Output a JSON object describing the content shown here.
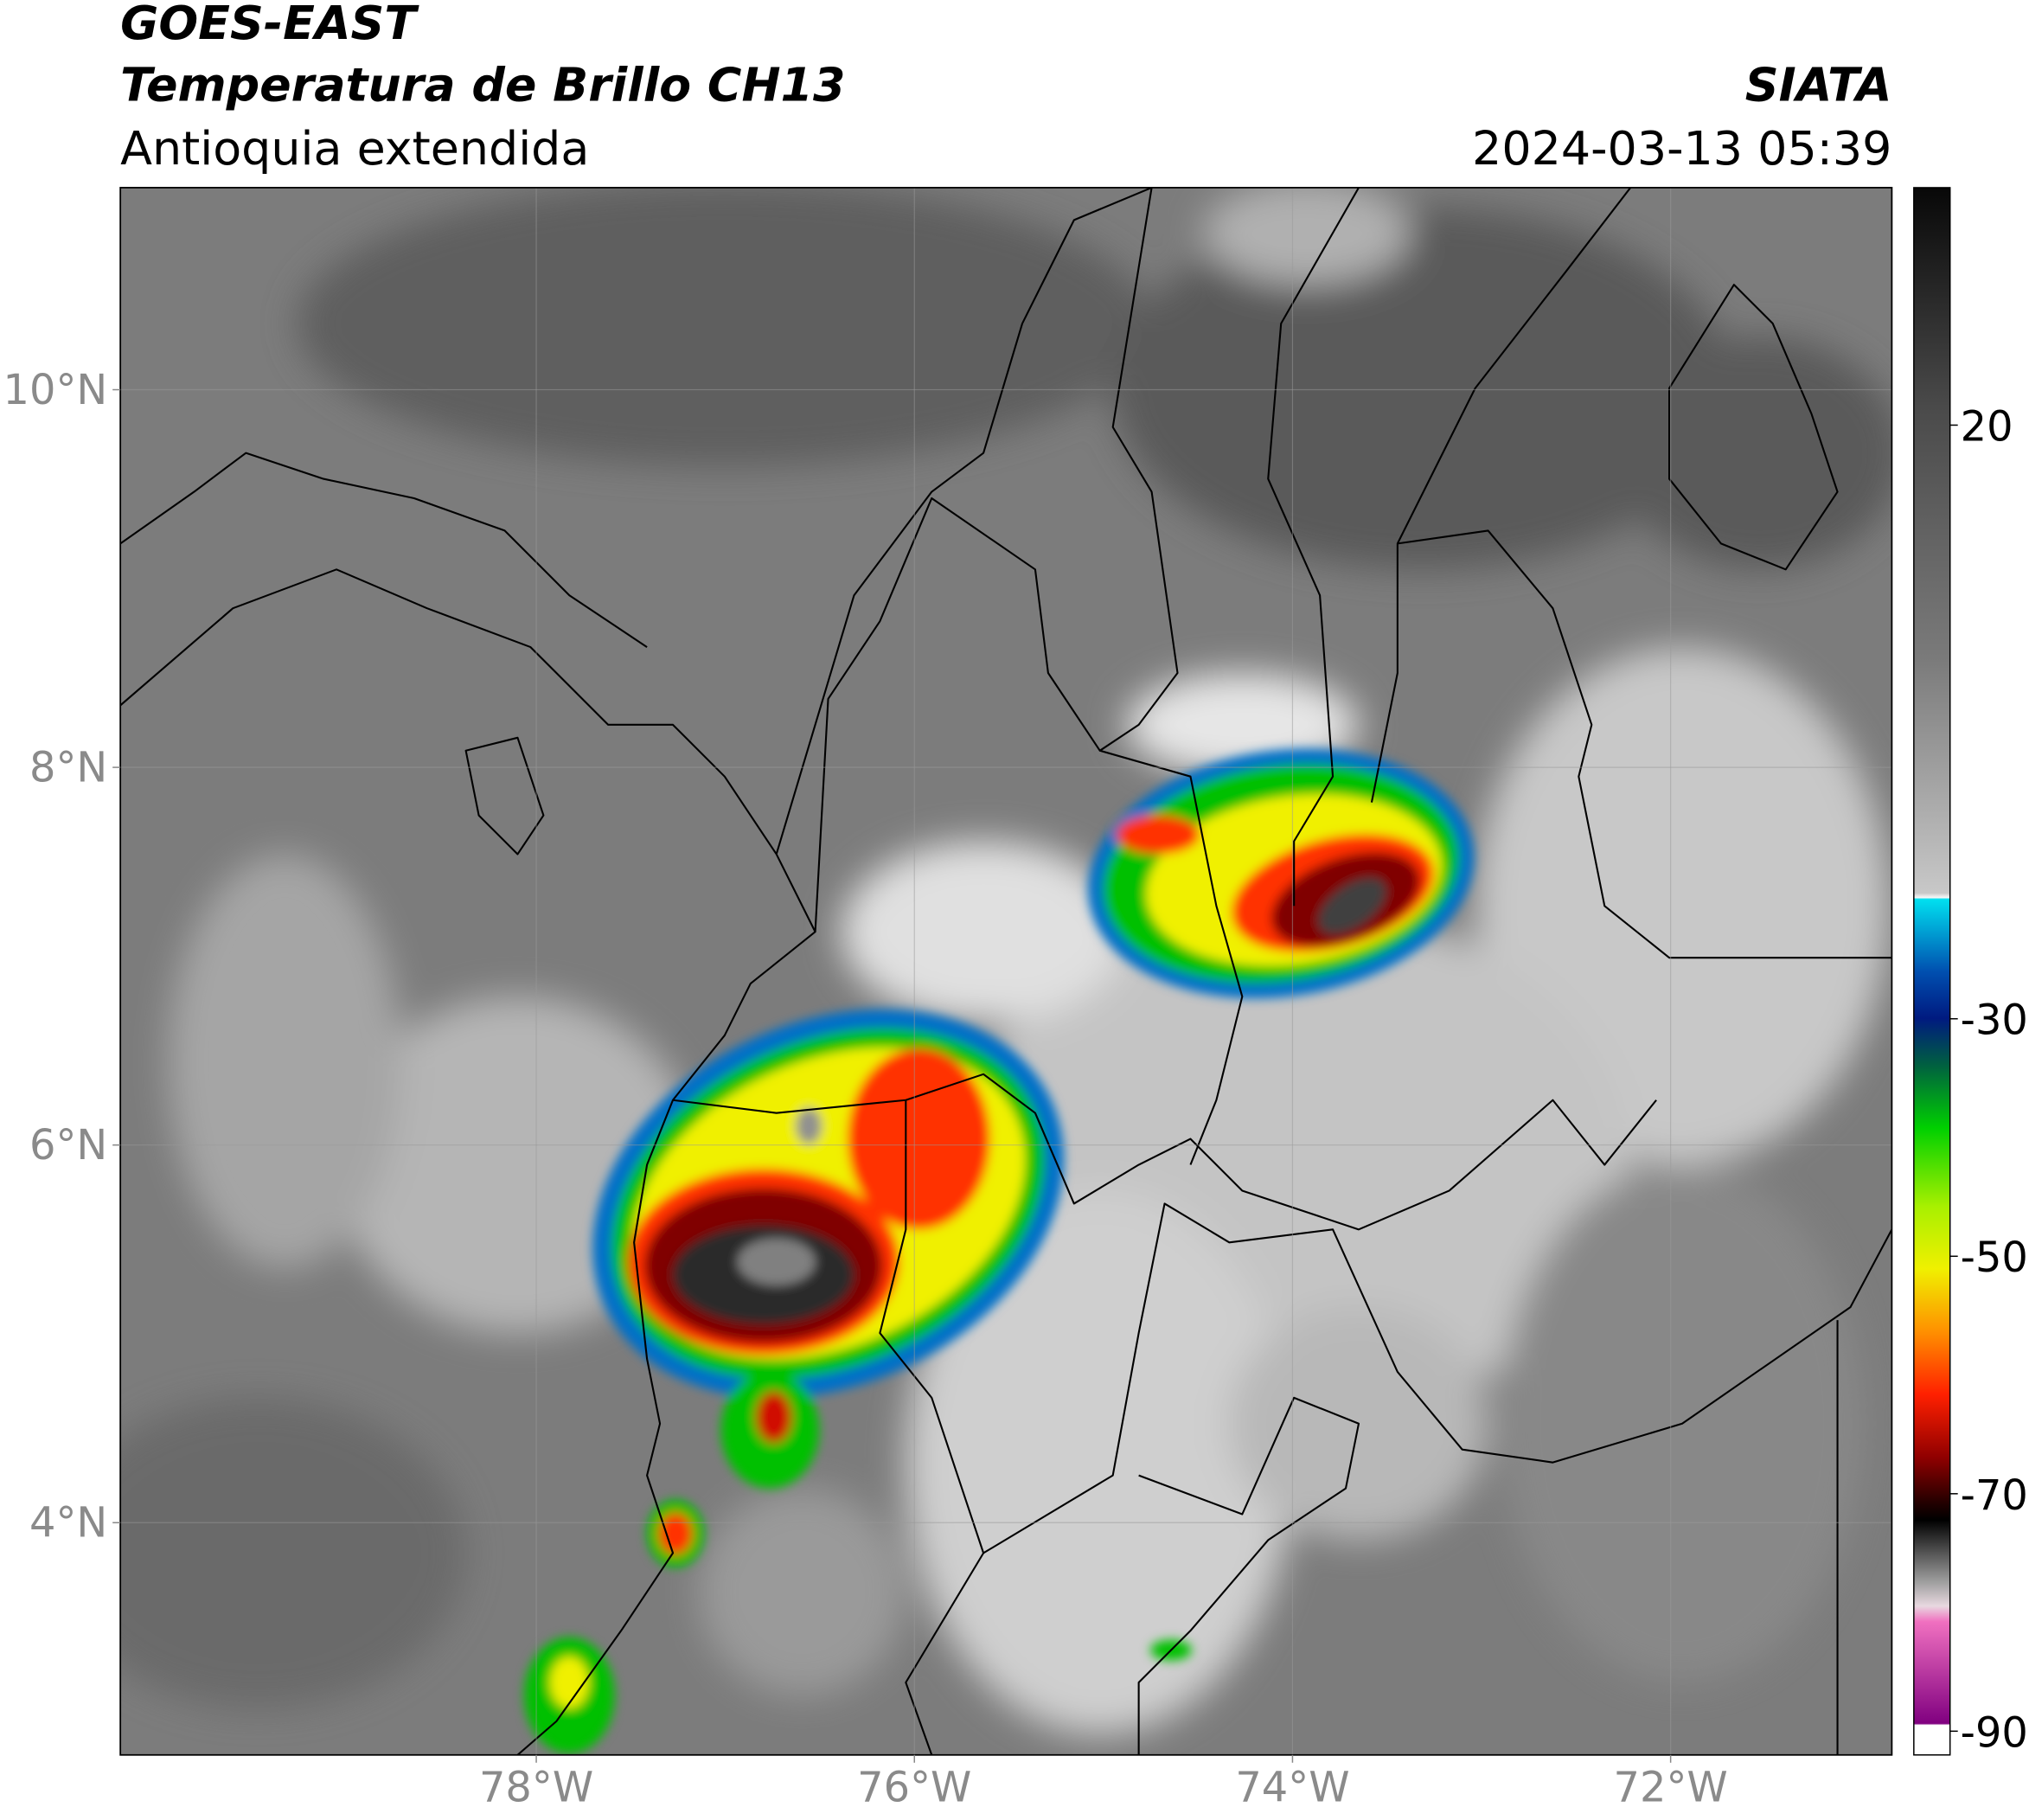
{
  "header": {
    "title": "GOES-EAST",
    "subtitle": "Temperatura de Brillo CH13",
    "region": "Antioquia extendida",
    "source": "SIATA",
    "datetime": "2024-03-13 05:39"
  },
  "map": {
    "xlim": [
      -80.2,
      -70.83
    ],
    "ylim": [
      2.77,
      11.07
    ],
    "xticks": [
      {
        "value": -78,
        "label": "78°W"
      },
      {
        "value": -76,
        "label": "76°W"
      },
      {
        "value": -74,
        "label": "74°W"
      },
      {
        "value": -72,
        "label": "72°W"
      }
    ],
    "yticks": [
      {
        "value": 4,
        "label": "4°N"
      },
      {
        "value": 6,
        "label": "6°N"
      },
      {
        "value": 8,
        "label": "8°N"
      },
      {
        "value": 10,
        "label": "10°N"
      }
    ],
    "grid": true
  },
  "colorbar": {
    "clim": [
      -92,
      40
    ],
    "ticks": [
      20,
      -30,
      -50,
      -70,
      -90
    ]
  }
}
